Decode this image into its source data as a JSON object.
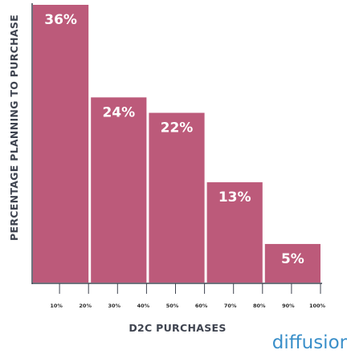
{
  "chart_data": {
    "type": "bar",
    "values": [
      36,
      24,
      22,
      13,
      5
    ],
    "value_labels": [
      "36%",
      "24%",
      "22%",
      "13%",
      "5%"
    ],
    "x_ticks": [
      "10%",
      "20%",
      "30%",
      "40%",
      "50%",
      "60%",
      "70%",
      "80%",
      "90%",
      "100%"
    ],
    "xlabel": "D2C PURCHASES",
    "ylabel": "PERCENTAGE PLANNING TO PURCHASE",
    "ylim": [
      0,
      36
    ],
    "grid": false,
    "colors": {
      "bar": "#bc5a7a",
      "axis": "#3f4450",
      "label": "#ffffff"
    }
  },
  "branding": {
    "logo_text": "diffusion",
    "logo_color": "#3a8fc9"
  }
}
